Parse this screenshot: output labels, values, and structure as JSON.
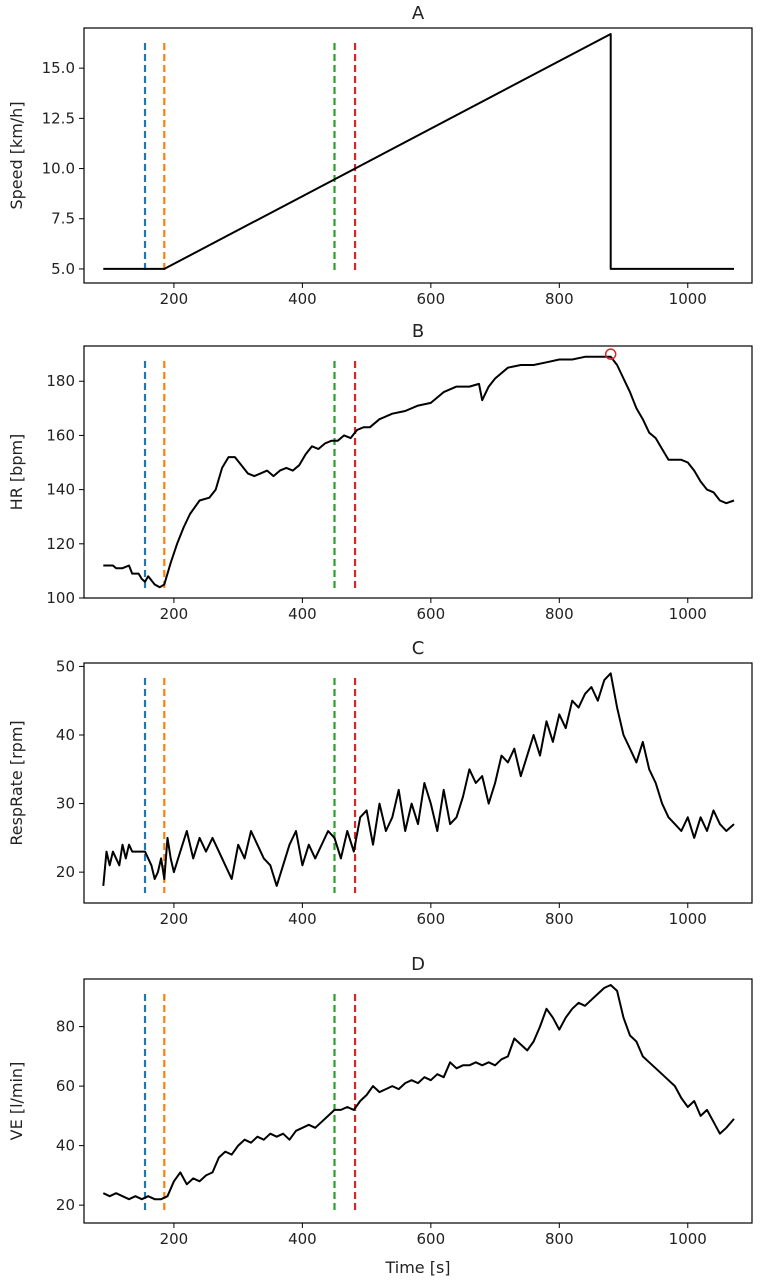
{
  "figure": {
    "xlabel": "Time [s]",
    "marker_colors": {
      "blue": "#1f77b4",
      "orange": "#ff7f0e",
      "green": "#2ca02c",
      "red": "#d62728"
    },
    "line_color": "#000000"
  },
  "chart_data": [
    {
      "type": "line",
      "title": "A",
      "ylabel": "Speed [km/h]",
      "xlim": [
        60,
        1100
      ],
      "ylim": [
        4.3,
        17.0
      ],
      "xticks": [
        200,
        400,
        600,
        800,
        1000
      ],
      "yticks": [
        5.0,
        7.5,
        10.0,
        12.5,
        15.0
      ],
      "ytick_labels": [
        "5.0",
        "7.5",
        "10.0",
        "12.5",
        "15.0"
      ],
      "xtick_labels": [
        "200",
        "400",
        "600",
        "800",
        "1000"
      ],
      "vlines": [
        {
          "x": 155,
          "color": "blue"
        },
        {
          "x": 185,
          "color": "orange"
        },
        {
          "x": 450,
          "color": "green"
        },
        {
          "x": 482,
          "color": "red"
        }
      ],
      "series": [
        {
          "x": [
            90,
            185,
            880,
            880,
            1072
          ],
          "y": [
            5.0,
            5.0,
            16.7,
            5.0,
            5.0
          ]
        }
      ]
    },
    {
      "type": "line",
      "title": "B",
      "ylabel": "HR [bpm]",
      "xlim": [
        60,
        1100
      ],
      "ylim": [
        100,
        193
      ],
      "xticks": [
        200,
        400,
        600,
        800,
        1000
      ],
      "yticks": [
        100,
        120,
        140,
        160,
        180
      ],
      "ytick_labels": [
        "100",
        "120",
        "140",
        "160",
        "180"
      ],
      "xtick_labels": [
        "200",
        "400",
        "600",
        "800",
        "1000"
      ],
      "vlines": [
        {
          "x": 155,
          "color": "blue"
        },
        {
          "x": 185,
          "color": "orange"
        },
        {
          "x": 450,
          "color": "green"
        },
        {
          "x": 482,
          "color": "red"
        }
      ],
      "marker": {
        "x": 880,
        "y": 190,
        "color": "red"
      },
      "series": [
        {
          "x": [
            90,
            105,
            110,
            120,
            130,
            135,
            145,
            150,
            155,
            160,
            170,
            178,
            185,
            195,
            205,
            215,
            225,
            240,
            255,
            265,
            275,
            285,
            295,
            305,
            315,
            325,
            335,
            345,
            355,
            365,
            375,
            385,
            395,
            405,
            415,
            425,
            435,
            445,
            455,
            465,
            475,
            485,
            495,
            505,
            520,
            540,
            560,
            580,
            600,
            620,
            640,
            660,
            675,
            680,
            690,
            700,
            720,
            740,
            760,
            780,
            800,
            820,
            840,
            860,
            880,
            890,
            900,
            910,
            920,
            930,
            940,
            950,
            960,
            970,
            980,
            990,
            1000,
            1010,
            1020,
            1030,
            1040,
            1050,
            1060,
            1072
          ],
          "y": [
            112,
            112,
            111,
            111,
            112,
            109,
            109,
            107,
            106,
            108,
            105,
            104,
            105,
            113,
            120,
            126,
            131,
            136,
            137,
            140,
            148,
            152,
            152,
            149,
            146,
            145,
            146,
            147,
            145,
            147,
            148,
            147,
            149,
            153,
            156,
            155,
            157,
            158,
            158,
            160,
            159,
            162,
            163,
            163,
            166,
            168,
            169,
            171,
            172,
            176,
            178,
            178,
            179,
            173,
            178,
            181,
            185,
            186,
            186,
            187,
            188,
            188,
            189,
            189,
            189,
            186,
            181,
            176,
            170,
            166,
            161,
            159,
            155,
            151,
            151,
            151,
            150,
            147,
            143,
            140,
            139,
            136,
            135,
            136
          ]
        }
      ]
    },
    {
      "type": "line",
      "title": "C",
      "ylabel": "RespRate [rpm]",
      "xlim": [
        60,
        1100
      ],
      "ylim": [
        15.5,
        50.5
      ],
      "xticks": [
        200,
        400,
        600,
        800,
        1000
      ],
      "yticks": [
        20,
        30,
        40,
        50
      ],
      "ytick_labels": [
        "20",
        "30",
        "40",
        "50"
      ],
      "xtick_labels": [
        "200",
        "400",
        "600",
        "800",
        "1000"
      ],
      "vlines": [
        {
          "x": 155,
          "color": "blue"
        },
        {
          "x": 185,
          "color": "orange"
        },
        {
          "x": 450,
          "color": "green"
        },
        {
          "x": 482,
          "color": "red"
        }
      ],
      "series": [
        {
          "x": [
            90,
            95,
            100,
            105,
            110,
            115,
            120,
            125,
            130,
            135,
            140,
            145,
            150,
            155,
            160,
            165,
            170,
            175,
            180,
            185,
            190,
            195,
            200,
            210,
            220,
            230,
            240,
            250,
            260,
            270,
            280,
            290,
            300,
            310,
            320,
            330,
            340,
            350,
            360,
            370,
            380,
            390,
            400,
            410,
            420,
            430,
            440,
            450,
            460,
            470,
            480,
            490,
            500,
            510,
            520,
            530,
            540,
            550,
            560,
            570,
            580,
            590,
            600,
            610,
            620,
            630,
            640,
            650,
            660,
            670,
            680,
            690,
            700,
            710,
            720,
            730,
            740,
            750,
            760,
            770,
            780,
            790,
            800,
            810,
            820,
            830,
            840,
            850,
            860,
            870,
            880,
            890,
            900,
            910,
            920,
            930,
            940,
            950,
            960,
            970,
            980,
            990,
            1000,
            1010,
            1020,
            1030,
            1040,
            1050,
            1060,
            1072
          ],
          "y": [
            18,
            23,
            21,
            23,
            22,
            21,
            24,
            22,
            24,
            23,
            23,
            23,
            23,
            23,
            22,
            21,
            19,
            20,
            22,
            19,
            25,
            22,
            20,
            23,
            26,
            22,
            25,
            23,
            25,
            23,
            21,
            19,
            24,
            22,
            26,
            24,
            22,
            21,
            18,
            21,
            24,
            26,
            21,
            24,
            22,
            24,
            26,
            25,
            22,
            26,
            23,
            28,
            29,
            24,
            30,
            26,
            28,
            32,
            26,
            30,
            27,
            33,
            30,
            26,
            32,
            27,
            28,
            31,
            35,
            33,
            34,
            30,
            33,
            37,
            36,
            38,
            34,
            37,
            40,
            37,
            42,
            39,
            43,
            41,
            45,
            44,
            46,
            47,
            45,
            48,
            49,
            44,
            40,
            38,
            36,
            39,
            35,
            33,
            30,
            28,
            27,
            26,
            28,
            25,
            28,
            26,
            29,
            27,
            26,
            27
          ]
        }
      ]
    },
    {
      "type": "line",
      "title": "D",
      "ylabel": "VE [l/min]",
      "xlabel": "Time [s]",
      "xlim": [
        60,
        1100
      ],
      "ylim": [
        14,
        96
      ],
      "xticks": [
        200,
        400,
        600,
        800,
        1000
      ],
      "yticks": [
        20,
        40,
        60,
        80
      ],
      "ytick_labels": [
        "20",
        "40",
        "60",
        "80"
      ],
      "xtick_labels": [
        "200",
        "400",
        "600",
        "800",
        "1000"
      ],
      "vlines": [
        {
          "x": 155,
          "color": "blue"
        },
        {
          "x": 185,
          "color": "orange"
        },
        {
          "x": 450,
          "color": "green"
        },
        {
          "x": 482,
          "color": "red"
        }
      ],
      "series": [
        {
          "x": [
            90,
            100,
            110,
            120,
            130,
            140,
            150,
            160,
            170,
            180,
            190,
            200,
            210,
            220,
            230,
            240,
            250,
            260,
            270,
            280,
            290,
            300,
            310,
            320,
            330,
            340,
            350,
            360,
            370,
            380,
            390,
            400,
            410,
            420,
            430,
            440,
            450,
            460,
            470,
            480,
            490,
            500,
            510,
            520,
            530,
            540,
            550,
            560,
            570,
            580,
            590,
            600,
            610,
            620,
            630,
            640,
            650,
            660,
            670,
            680,
            690,
            700,
            710,
            720,
            730,
            740,
            750,
            760,
            770,
            780,
            790,
            800,
            810,
            820,
            830,
            840,
            850,
            860,
            870,
            880,
            890,
            900,
            910,
            920,
            930,
            940,
            950,
            960,
            970,
            980,
            990,
            1000,
            1010,
            1020,
            1030,
            1040,
            1050,
            1060,
            1072
          ],
          "y": [
            24,
            23,
            24,
            23,
            22,
            23,
            22,
            23,
            22,
            22,
            23,
            28,
            31,
            27,
            29,
            28,
            30,
            31,
            36,
            38,
            37,
            40,
            42,
            41,
            43,
            42,
            44,
            43,
            44,
            42,
            45,
            46,
            47,
            46,
            48,
            50,
            52,
            52,
            53,
            52,
            55,
            57,
            60,
            58,
            59,
            60,
            59,
            61,
            62,
            61,
            63,
            62,
            64,
            63,
            68,
            66,
            67,
            67,
            68,
            67,
            68,
            67,
            69,
            70,
            76,
            74,
            72,
            75,
            80,
            86,
            83,
            79,
            83,
            86,
            88,
            87,
            89,
            91,
            93,
            94,
            92,
            83,
            77,
            75,
            70,
            68,
            66,
            64,
            62,
            60,
            56,
            53,
            55,
            50,
            52,
            48,
            44,
            46,
            49
          ]
        }
      ]
    }
  ]
}
